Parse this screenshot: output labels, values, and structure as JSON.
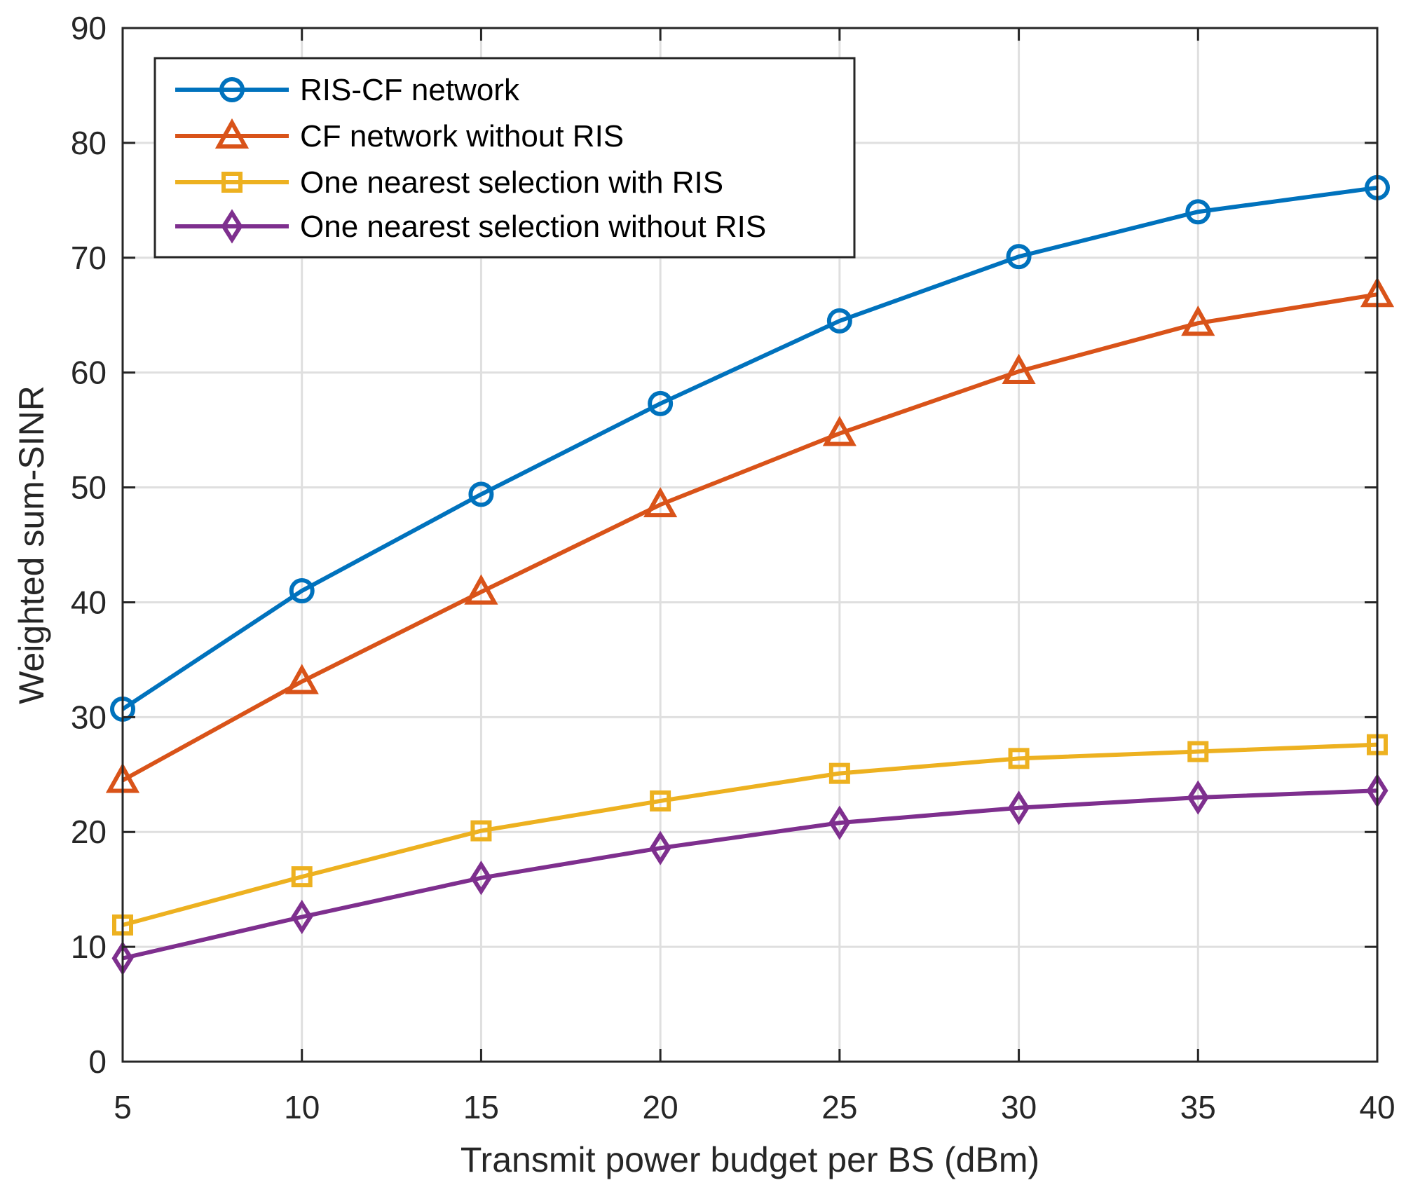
{
  "chart_data": {
    "type": "line",
    "title": "",
    "xlabel": "Transmit power budget per BS (dBm)",
    "ylabel": "Weighted sum-SINR",
    "xlim": [
      5,
      40
    ],
    "ylim": [
      0,
      90
    ],
    "xticks": [
      5,
      10,
      15,
      20,
      25,
      30,
      35,
      40
    ],
    "yticks": [
      0,
      10,
      20,
      30,
      40,
      50,
      60,
      70,
      80,
      90
    ],
    "grid": true,
    "legend_position": "top-left",
    "x": [
      5,
      10,
      15,
      20,
      25,
      30,
      35,
      40
    ],
    "series": [
      {
        "name": "RIS-CF network",
        "marker": "circle",
        "color": "#0072BD",
        "values": [
          30.7,
          41.0,
          49.4,
          57.3,
          64.5,
          70.1,
          74.0,
          76.1
        ]
      },
      {
        "name": "CF network without RIS",
        "marker": "triangle",
        "color": "#D95319",
        "values": [
          24.5,
          33.1,
          40.9,
          48.5,
          54.7,
          60.1,
          64.3,
          66.8
        ]
      },
      {
        "name": "One nearest selection with RIS",
        "marker": "square",
        "color": "#EDB120",
        "values": [
          11.9,
          16.1,
          20.1,
          22.7,
          25.1,
          26.4,
          27.0,
          27.6
        ]
      },
      {
        "name": "One nearest selection without RIS",
        "marker": "diamond",
        "color": "#7E2F8E",
        "values": [
          9.0,
          12.6,
          16.0,
          18.6,
          20.8,
          22.1,
          23.0,
          23.6
        ]
      }
    ]
  }
}
